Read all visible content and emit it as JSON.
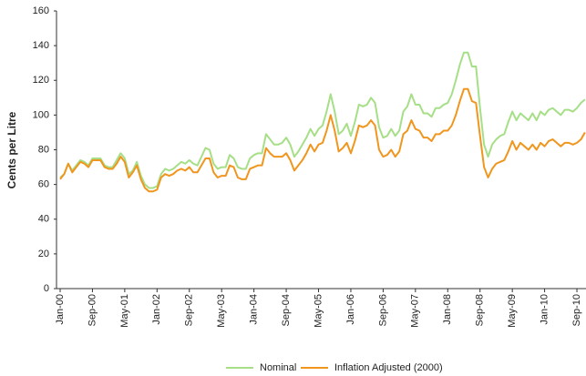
{
  "chart_data": {
    "type": "line",
    "ylabel": "Cents per Litre",
    "categories": [
      "Jan-00",
      null,
      null,
      null,
      null,
      null,
      null,
      null,
      "Sep-00",
      null,
      null,
      null,
      null,
      null,
      null,
      null,
      "May-01",
      null,
      null,
      null,
      null,
      null,
      null,
      null,
      "Jan-02",
      null,
      null,
      null,
      null,
      null,
      null,
      null,
      "Sep-02",
      null,
      null,
      null,
      null,
      null,
      null,
      null,
      "May-03",
      null,
      null,
      null,
      null,
      null,
      null,
      null,
      "Jan-04",
      null,
      null,
      null,
      null,
      null,
      null,
      null,
      "Sep-04",
      null,
      null,
      null,
      null,
      null,
      null,
      null,
      "May-05",
      null,
      null,
      null,
      null,
      null,
      null,
      null,
      "Jan-06",
      null,
      null,
      null,
      null,
      null,
      null,
      null,
      "Sep-06",
      null,
      null,
      null,
      null,
      null,
      null,
      null,
      "May-07",
      null,
      null,
      null,
      null,
      null,
      null,
      null,
      "Jan-08",
      null,
      null,
      null,
      null,
      null,
      null,
      null,
      "Sep-08",
      null,
      null,
      null,
      null,
      null,
      null,
      null,
      "May-09",
      null,
      null,
      null,
      null,
      null,
      null,
      null,
      "Jan-10",
      null,
      null,
      null,
      null,
      null,
      null,
      null,
      "Sep-10",
      null,
      null
    ],
    "series": [
      {
        "name": "Nominal",
        "color": "#a6df87",
        "values": [
          64,
          66,
          72,
          68,
          71,
          74,
          73,
          71,
          75,
          75,
          75,
          71,
          70,
          70,
          74,
          78,
          75,
          66,
          68,
          73,
          65,
          60,
          58,
          58,
          59,
          66,
          69,
          68,
          69,
          71,
          73,
          72,
          74,
          72,
          71,
          76,
          81,
          80,
          72,
          69,
          70,
          70,
          77,
          75,
          70,
          69,
          69,
          75,
          77,
          78,
          78,
          89,
          86,
          83,
          83,
          84,
          87,
          83,
          76,
          79,
          83,
          87,
          92,
          88,
          92,
          94,
          102,
          112,
          102,
          89,
          91,
          95,
          88,
          96,
          106,
          105,
          106,
          110,
          107,
          93,
          87,
          88,
          92,
          88,
          91,
          102,
          105,
          112,
          106,
          106,
          101,
          101,
          99,
          104,
          104,
          106,
          107,
          112,
          120,
          129,
          136,
          136,
          128,
          128,
          104,
          83,
          76,
          83,
          86,
          88,
          89,
          96,
          102,
          97,
          101,
          99,
          97,
          101,
          97,
          102,
          100,
          103,
          104,
          102,
          100,
          103,
          103,
          102,
          104,
          107,
          109
        ]
      },
      {
        "name": "Inflation Adjusted (2000)",
        "color": "#f0961e",
        "values": [
          63,
          66,
          72,
          67,
          70,
          73,
          72,
          70,
          74,
          74,
          74,
          70,
          69,
          69,
          72,
          76,
          73,
          64,
          67,
          71,
          63,
          58,
          56,
          56,
          57,
          64,
          66,
          65,
          66,
          68,
          69,
          68,
          70,
          67,
          67,
          71,
          75,
          75,
          67,
          64,
          65,
          65,
          71,
          70,
          64,
          63,
          63,
          69,
          70,
          71,
          71,
          81,
          78,
          76,
          76,
          76,
          78,
          74,
          68,
          71,
          74,
          78,
          83,
          79,
          83,
          84,
          91,
          100,
          91,
          79,
          81,
          84,
          78,
          85,
          94,
          93,
          94,
          97,
          94,
          80,
          76,
          77,
          80,
          76,
          79,
          89,
          91,
          97,
          92,
          91,
          87,
          87,
          85,
          89,
          89,
          91,
          91,
          94,
          100,
          108,
          115,
          115,
          108,
          107,
          88,
          70,
          64,
          69,
          72,
          73,
          74,
          79,
          85,
          80,
          84,
          82,
          80,
          83,
          80,
          84,
          82,
          85,
          86,
          84,
          82,
          84,
          84,
          83,
          84,
          86,
          90
        ]
      }
    ],
    "ylim": [
      0,
      160
    ],
    "yticks": [
      0,
      20,
      40,
      60,
      80,
      100,
      120,
      140,
      160
    ]
  }
}
